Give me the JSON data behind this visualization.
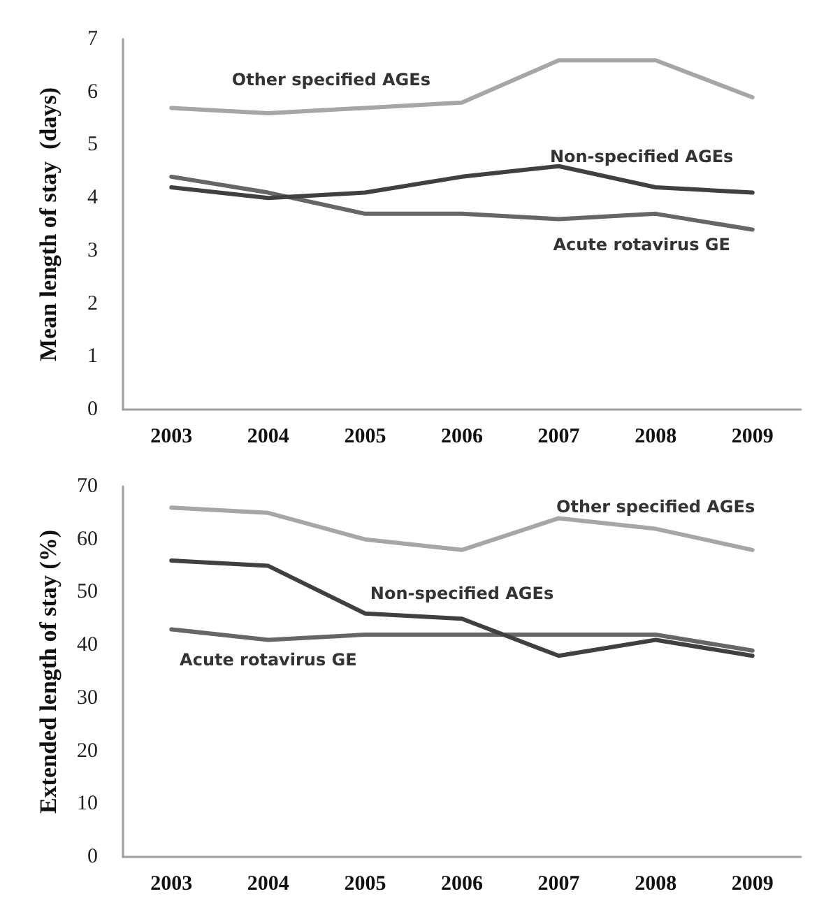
{
  "chart_data": [
    {
      "type": "line",
      "ylabel": "Mean length of stay  (days)",
      "categories": [
        "2003",
        "2004",
        "2005",
        "2006",
        "2007",
        "2008",
        "2009"
      ],
      "ylim": [
        0,
        7
      ],
      "yticks": [
        0,
        1,
        2,
        3,
        4,
        5,
        6,
        7
      ],
      "grid": false,
      "legend": false,
      "marker": "none",
      "line_style": "solid",
      "series": [
        {
          "name": "Other specified AGEs",
          "color": "#a6a6a6",
          "values": [
            5.7,
            5.6,
            5.7,
            5.8,
            6.6,
            6.6,
            5.9
          ]
        },
        {
          "name": "Non-specified AGEs",
          "color": "#404040",
          "values": [
            4.2,
            4.0,
            4.1,
            4.4,
            4.6,
            4.2,
            4.1
          ]
        },
        {
          "name": "Acute rotavirus GE",
          "color": "#666666",
          "values": [
            4.4,
            4.1,
            3.7,
            3.7,
            3.6,
            3.7,
            3.4
          ]
        }
      ]
    },
    {
      "type": "line",
      "ylabel": "Extended length of stay (%)",
      "categories": [
        "2003",
        "2004",
        "2005",
        "2006",
        "2007",
        "2008",
        "2009"
      ],
      "ylim": [
        0,
        70
      ],
      "yticks": [
        0,
        10,
        20,
        30,
        40,
        50,
        60,
        70
      ],
      "grid": false,
      "legend": false,
      "marker": "none",
      "line_style": "solid",
      "series": [
        {
          "name": "Other specified AGEs",
          "color": "#a6a6a6",
          "values": [
            66,
            65,
            60,
            58,
            64,
            62,
            58
          ]
        },
        {
          "name": "Non-specified AGEs",
          "color": "#404040",
          "values": [
            56,
            55,
            46,
            45,
            38,
            41,
            38
          ]
        },
        {
          "name": "Acute rotavirus GE",
          "color": "#666666",
          "values": [
            43,
            41,
            42,
            42,
            42,
            42,
            39
          ]
        }
      ]
    }
  ]
}
